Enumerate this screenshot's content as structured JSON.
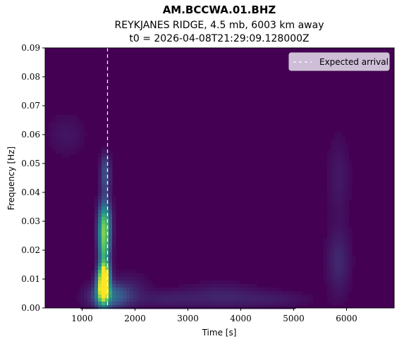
{
  "chart_data": {
    "type": "heatmap",
    "title": "AM.BCCWA.01.BHZ",
    "subtitle": "REYKJANES RIDGE, 4.5 mb, 6003 km away",
    "subtitle2": "t0 = 2026-04-08T21:29:09.128000Z",
    "xlabel": "Time [s]",
    "ylabel": "Frequency [Hz]",
    "xlim": [
      300,
      6900
    ],
    "ylim": [
      0,
      0.09
    ],
    "xticks": [
      1000,
      2000,
      3000,
      4000,
      5000,
      6000
    ],
    "xtick_labels": [
      "1000",
      "2000",
      "3000",
      "4000",
      "5000",
      "6000"
    ],
    "yticks": [
      0,
      0.01,
      0.02,
      0.03,
      0.04,
      0.05,
      0.06,
      0.07,
      0.08,
      0.09
    ],
    "ytick_labels": [
      "0.00",
      "0.01",
      "0.02",
      "0.03",
      "0.04",
      "0.05",
      "0.06",
      "0.07",
      "0.08",
      "0.09"
    ],
    "colormap": "viridis",
    "expected_arrival_time": 1480,
    "legend": {
      "label": "Expected arrival",
      "position": "upper right"
    },
    "energy_blobs": [
      {
        "t": 1400,
        "f": 0.007,
        "intensity": 1.0,
        "st": 80,
        "sf": 0.004
      },
      {
        "t": 1420,
        "f": 0.012,
        "intensity": 0.75,
        "st": 70,
        "sf": 0.003
      },
      {
        "t": 1420,
        "f": 0.02,
        "intensity": 0.55,
        "st": 75,
        "sf": 0.004
      },
      {
        "t": 1420,
        "f": 0.027,
        "intensity": 0.6,
        "st": 80,
        "sf": 0.004
      },
      {
        "t": 1430,
        "f": 0.033,
        "intensity": 0.35,
        "st": 80,
        "sf": 0.004
      },
      {
        "t": 1440,
        "f": 0.044,
        "intensity": 0.22,
        "st": 70,
        "sf": 0.004
      },
      {
        "t": 1440,
        "f": 0.05,
        "intensity": 0.15,
        "st": 60,
        "sf": 0.003
      },
      {
        "t": 1500,
        "f": 0.004,
        "intensity": 0.35,
        "st": 250,
        "sf": 0.003
      },
      {
        "t": 5850,
        "f": 0.016,
        "intensity": 0.12,
        "st": 150,
        "sf": 0.008
      },
      {
        "t": 5850,
        "f": 0.045,
        "intensity": 0.07,
        "st": 150,
        "sf": 0.01
      },
      {
        "t": 700,
        "f": 0.06,
        "intensity": 0.06,
        "st": 250,
        "sf": 0.005
      },
      {
        "t": 3600,
        "f": 0.004,
        "intensity": 0.1,
        "st": 500,
        "sf": 0.003
      },
      {
        "t": 2600,
        "f": 0.003,
        "intensity": 0.08,
        "st": 400,
        "sf": 0.002
      },
      {
        "t": 4600,
        "f": 0.003,
        "intensity": 0.07,
        "st": 500,
        "sf": 0.002
      },
      {
        "t": 1900,
        "f": 0.006,
        "intensity": 0.08,
        "st": 250,
        "sf": 0.004
      }
    ],
    "colors": {
      "background": "#440154",
      "arrival_line": "#ffffff"
    }
  }
}
